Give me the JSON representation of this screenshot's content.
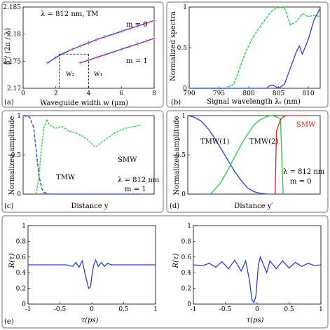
{
  "colors": {
    "blue": "#2b3fd4",
    "green": "#1fcf3a",
    "red": "#e32525",
    "marker": "#ff4d6d",
    "frame": "#8a8a8a"
  },
  "panels": {
    "a": {
      "label": "(a)",
      "xlabel": "Waveguide width w (μm)",
      "ylabel": "β / (2π / λ)",
      "annotation": "λ = 812 nm, TM",
      "m0": "m = 0",
      "m1": "m = 1",
      "w2": "w₂",
      "w1": "w₁"
    },
    "b": {
      "label": "(b)",
      "xlabel": "Signal wavelength λₛ (nm)",
      "ylabel": "Normalized spectra"
    },
    "c": {
      "label": "(c)",
      "xlabel": "Distance y",
      "ylabel": "Normalized amplitude",
      "smw": "SMW",
      "tmw": "TMW",
      "lambda": "λ = 812 nm",
      "mode": "m = 1"
    },
    "d": {
      "label": "(d)",
      "xlabel": "Distance y′",
      "ylabel": "Normalized amplitude",
      "tmw1": "TMW(1)",
      "tmw2": "TMW(2)",
      "smw": "SMW",
      "lambda": "λ = 812 nm",
      "mode": "m = 0"
    },
    "e": {
      "label": "(e)",
      "xlabel_left": "τ(ps)",
      "xlabel_right": "τ(ps)",
      "ylabel_left": "R(τ)",
      "ylabel_right": "R(τ)"
    }
  },
  "chart_data": [
    {
      "type": "line",
      "id": "a",
      "xlabel": "Waveguide width w (μm)",
      "ylabel": "β / (2π / λ)",
      "xlim": [
        0,
        8
      ],
      "ylim": [
        2.17,
        2.185
      ],
      "xticks": [
        0,
        2,
        4,
        6,
        8
      ],
      "yticks": [
        2.17,
        2.175,
        2.18,
        2.185
      ],
      "series": [
        {
          "name": "m = 0",
          "x": [
            1.5,
            2,
            2.5,
            3,
            3.5,
            4,
            4.5,
            5,
            5.5,
            6,
            6.5,
            7,
            7.5,
            8
          ],
          "y": [
            2.1747,
            2.1757,
            2.1765,
            2.1772,
            2.1778,
            2.1784,
            2.179,
            2.1795,
            2.18,
            2.1805,
            2.181,
            2.1815,
            2.182,
            2.1825
          ]
        },
        {
          "name": "m = 1",
          "x": [
            3.5,
            4,
            4.5,
            5,
            5.5,
            6,
            6.5,
            7,
            7.5,
            8
          ],
          "y": [
            2.1747,
            2.1752,
            2.1757,
            2.1762,
            2.1767,
            2.1772,
            2.1777,
            2.1782,
            2.1787,
            2.1792
          ]
        }
      ],
      "markers": {
        "x": [
          1.5,
          2,
          2.5,
          3,
          3.5,
          4,
          4.5,
          5,
          5.5,
          6,
          6.5,
          7,
          7.5,
          8
        ]
      },
      "guides": {
        "w2": 2.2,
        "w1": 4.0,
        "beta": 2.1763
      }
    },
    {
      "type": "line",
      "id": "b",
      "xlabel": "Signal wavelength λₛ (nm)",
      "ylabel": "Normalized spectra",
      "xlim": [
        790,
        812
      ],
      "ylim": [
        0,
        1
      ],
      "xticks": [
        790,
        795,
        800,
        805,
        810
      ],
      "yticks": [
        0,
        0.5,
        1
      ],
      "series": [
        {
          "name": "green",
          "x": [
            790,
            796,
            797.5,
            798.5,
            799.5,
            800.5,
            801.5,
            802.5,
            803.5,
            804.2,
            805.2,
            806,
            807,
            808,
            809,
            810,
            811,
            812
          ],
          "y": [
            0,
            0,
            0.05,
            0.25,
            0.45,
            0.6,
            0.72,
            0.82,
            0.92,
            0.97,
            1,
            0.99,
            0.78,
            0.82,
            0.92,
            0.88,
            0.9,
            0.88
          ]
        },
        {
          "name": "blue",
          "x": [
            790,
            803,
            803.5,
            804,
            804.5,
            805,
            806,
            807,
            808,
            808.5,
            809,
            810,
            811,
            812
          ],
          "y": [
            0,
            0,
            0.03,
            0.04,
            0.02,
            0,
            0.05,
            0.25,
            0.45,
            0.52,
            0.42,
            0.6,
            0.85,
            0.98
          ]
        }
      ]
    },
    {
      "type": "line",
      "id": "c",
      "xlabel": "Distance y",
      "ylabel": "Normalized amplitude",
      "xlim": [
        0,
        1
      ],
      "ylim": [
        0,
        1
      ],
      "yticks": [
        0,
        0.5,
        1
      ],
      "series": [
        {
          "name": "SMW",
          "x": [
            0.1,
            0.12,
            0.14,
            0.16,
            0.18,
            0.2,
            0.25,
            0.3,
            0.35,
            0.4,
            0.45,
            0.5,
            0.55,
            0.6,
            0.65,
            0.7,
            0.75,
            0.8,
            0.85,
            0.9
          ],
          "y": [
            0,
            0.2,
            0.6,
            0.85,
            0.95,
            0.88,
            0.84,
            0.86,
            0.8,
            0.78,
            0.74,
            0.68,
            0.6,
            0.66,
            0.72,
            0.78,
            0.82,
            0.85,
            0.86,
            0.88
          ]
        },
        {
          "name": "TMW",
          "x": [
            0,
            0.05,
            0.08,
            0.1,
            0.12,
            0.14,
            0.16,
            0.2,
            0.3,
            0.5,
            0.7,
            0.9
          ],
          "y": [
            1,
            0.98,
            0.85,
            0.55,
            0.25,
            0.08,
            0.02,
            0,
            0,
            0,
            0,
            0
          ]
        }
      ]
    },
    {
      "type": "line",
      "id": "d",
      "xlabel": "Distance y′",
      "ylabel": "Normalized amplitude",
      "xlim": [
        0,
        1
      ],
      "ylim": [
        0,
        1
      ],
      "yticks": [
        0,
        0.5,
        1
      ],
      "series": [
        {
          "name": "TMW(1)",
          "x": [
            0,
            0.05,
            0.1,
            0.15,
            0.2,
            0.25,
            0.3,
            0.35,
            0.4,
            0.45,
            0.5,
            0.55,
            0.6
          ],
          "y": [
            1,
            0.98,
            0.93,
            0.84,
            0.72,
            0.58,
            0.44,
            0.3,
            0.18,
            0.08,
            0.03,
            0.01,
            0
          ]
        },
        {
          "name": "TMW(2)",
          "x": [
            0.17,
            0.2,
            0.25,
            0.3,
            0.35,
            0.4,
            0.45,
            0.5,
            0.55,
            0.6,
            0.63,
            0.66,
            0.7,
            0.72
          ],
          "y": [
            0,
            0.05,
            0.15,
            0.3,
            0.46,
            0.62,
            0.76,
            0.88,
            0.95,
            0.99,
            1,
            0.99,
            0.96,
            0
          ]
        },
        {
          "name": "SMW",
          "x": [
            0.66,
            0.67,
            0.7,
            0.72,
            0.74,
            0.75,
            0.8,
            0.9
          ],
          "y": [
            0,
            0.8,
            0.95,
            0.98,
            1,
            1,
            1,
            1
          ]
        }
      ]
    },
    {
      "type": "line",
      "id": "e-left",
      "xlabel": "τ(ps)",
      "ylabel": "R(τ)",
      "xlim": [
        -1,
        1
      ],
      "ylim": [
        0,
        1
      ],
      "xticks": [
        -1,
        -0.5,
        0,
        0.5,
        1
      ],
      "yticks": [
        0,
        0.2,
        0.4,
        0.6,
        0.8,
        1
      ],
      "series": [
        {
          "name": "R",
          "x": [
            -1,
            -0.4,
            -0.3,
            -0.25,
            -0.2,
            -0.15,
            -0.12,
            -0.08,
            -0.05,
            -0.02,
            0,
            0.03,
            0.06,
            0.1,
            0.15,
            0.2,
            0.25,
            0.3,
            0.4,
            1
          ],
          "y": [
            0.5,
            0.5,
            0.48,
            0.53,
            0.47,
            0.55,
            0.44,
            0.3,
            0.2,
            0.22,
            0.35,
            0.5,
            0.56,
            0.48,
            0.53,
            0.48,
            0.52,
            0.5,
            0.5,
            0.5
          ]
        }
      ]
    },
    {
      "type": "line",
      "id": "e-right",
      "xlabel": "τ(ps)",
      "ylabel": "R(τ)",
      "xlim": [
        -1,
        1
      ],
      "ylim": [
        0,
        1
      ],
      "xticks": [
        -1,
        -0.5,
        0,
        0.5,
        1
      ],
      "yticks": [
        0,
        0.2,
        0.4,
        0.6,
        0.8,
        1
      ],
      "series": [
        {
          "name": "R",
          "x": [
            -1,
            -0.85,
            -0.75,
            -0.65,
            -0.55,
            -0.45,
            -0.35,
            -0.25,
            -0.18,
            -0.12,
            -0.08,
            -0.05,
            -0.02,
            0.02,
            0.05,
            0.1,
            0.15,
            0.2,
            0.3,
            0.4,
            0.5,
            0.6,
            0.7,
            0.8,
            0.9,
            1
          ],
          "y": [
            0.5,
            0.49,
            0.52,
            0.47,
            0.54,
            0.45,
            0.56,
            0.42,
            0.55,
            0.3,
            0.05,
            0.02,
            0.1,
            0.5,
            0.6,
            0.5,
            0.4,
            0.55,
            0.45,
            0.55,
            0.46,
            0.53,
            0.48,
            0.52,
            0.49,
            0.5
          ]
        }
      ]
    }
  ]
}
